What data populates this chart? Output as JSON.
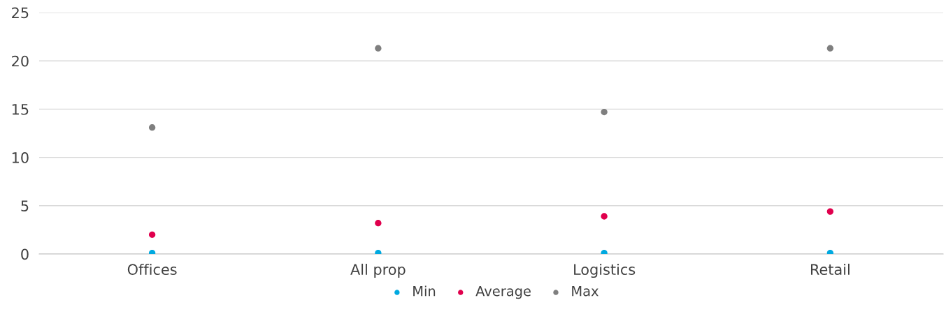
{
  "chart_data": {
    "type": "scatter",
    "categories": [
      "Offices",
      "All prop",
      "Logistics",
      "Retail"
    ],
    "series": [
      {
        "name": "Min",
        "color": "#00a9e0",
        "values": [
          0.1,
          0.1,
          0.1,
          0.1
        ]
      },
      {
        "name": "Average",
        "color": "#e0004d",
        "values": [
          2.0,
          3.2,
          3.9,
          4.4
        ]
      },
      {
        "name": "Max",
        "color": "#7f7f7f",
        "values": [
          13.1,
          21.3,
          14.7,
          21.3
        ]
      }
    ],
    "ylim": [
      0,
      25
    ],
    "yticks": [
      0,
      5,
      10,
      15,
      20,
      25
    ],
    "grid": "y",
    "legend": "bottom",
    "marker": "circle"
  }
}
